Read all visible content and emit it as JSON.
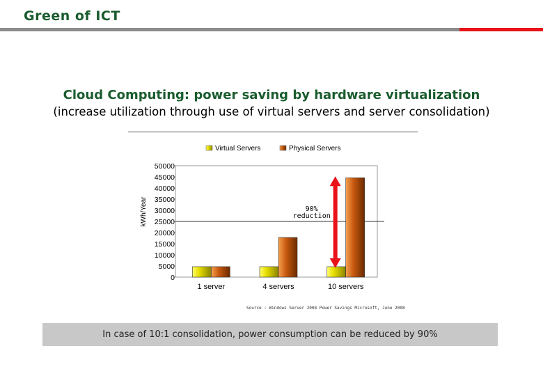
{
  "header": {
    "title": "Green of ICT"
  },
  "slide": {
    "heading": "Cloud Computing:  power saving by hardware virtualization",
    "subheading": "(increase utilization through use of virtual servers and server consolidation)"
  },
  "chart_data": {
    "type": "bar",
    "categories": [
      "1 server",
      "4 servers",
      "10 servers"
    ],
    "series": [
      {
        "name": "Virtual Servers",
        "values": [
          4700,
          4700,
          4700
        ],
        "color": "#e8e000"
      },
      {
        "name": "Physical Servers",
        "values": [
          4700,
          17800,
          44600
        ],
        "color": "#c85a10"
      }
    ],
    "ylabel": "kWh/Year",
    "ylim": [
      0,
      50000
    ],
    "yticks": [
      "50000",
      "45000",
      "40000",
      "35000",
      "30000",
      "25000",
      "20000",
      "15000",
      "10000",
      "5000",
      "0"
    ],
    "reference_line": 25000,
    "annotation": {
      "percent": "90%",
      "label": "reduction",
      "from": 4700,
      "to": 44600,
      "color": "#e8141a"
    },
    "legend_position": "top"
  },
  "source_note": "Source : Windows Server 2008 Power Savings Microsoft, June 2008",
  "callout": {
    "text": "In case of 10:1 consolidation, power consumption can be reduced by 90%"
  }
}
